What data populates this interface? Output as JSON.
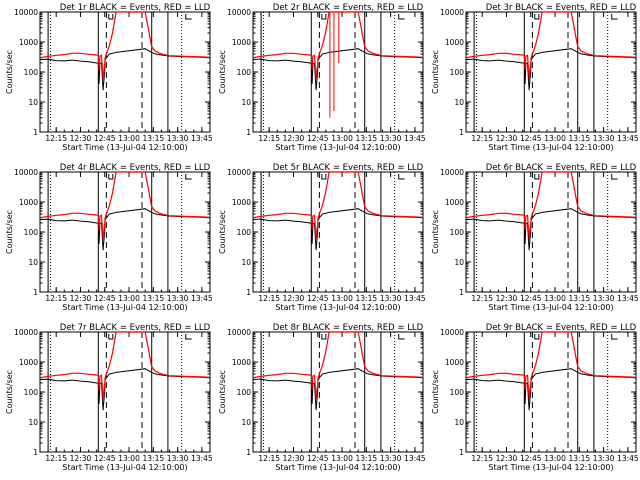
{
  "chart_data": {
    "type": "line",
    "layout": "3x3 grid",
    "shared": {
      "ylabel": "Counts/sec",
      "xlabel": "Start Time (13-Jul-04 12:10:00)",
      "yscale": "log",
      "ylim": [
        1,
        10000
      ],
      "yticks": [
        "1",
        "10",
        "100",
        "1000",
        "10000"
      ],
      "xlim_minutes": [
        -5,
        100
      ],
      "xticks": [
        {
          "t": 5,
          "label": "12:15"
        },
        {
          "t": 20,
          "label": "12:30"
        },
        {
          "t": 35,
          "label": "12:45"
        },
        {
          "t": 50,
          "label": "13:00"
        },
        {
          "t": 65,
          "label": "13:15"
        },
        {
          "t": 80,
          "label": "13:30"
        },
        {
          "t": 95,
          "label": "13:45"
        }
      ],
      "solid_lines_t": [
        0,
        31,
        64,
        74
      ],
      "dashed_lines_t": [
        36,
        58
      ],
      "dotted_lines_t": [
        1.5,
        82.5
      ],
      "series_colors": {
        "events": "#000000",
        "lld": "#ff0000"
      }
    },
    "panels": [
      {
        "title": "Det 1r BLACK = Events, RED = LLD"
      },
      {
        "title": "Det 2r BLACK = Events, RED = LLD",
        "spikes": true
      },
      {
        "title": "Det 3r BLACK = Events, RED = LLD"
      },
      {
        "title": "Det 4r BLACK = Events, RED = LLD"
      },
      {
        "title": "Det 5r BLACK = Events, RED = LLD"
      },
      {
        "title": "Det 6r BLACK = Events, RED = LLD"
      },
      {
        "title": "Det 7r BLACK = Events, RED = LLD"
      },
      {
        "title": "Det 8r BLACK = Events, RED = LLD"
      },
      {
        "title": "Det 9r BLACK = Events, RED = LLD"
      }
    ],
    "series": [
      {
        "values_t": [
          -5,
          0,
          5,
          10,
          15,
          20,
          25,
          30,
          31,
          31.5,
          32,
          33,
          34,
          35,
          35.2,
          36,
          38,
          39.8,
          42,
          60,
          64,
          66,
          70,
          75,
          85,
          95,
          100
        ],
        "values_events": [
          260,
          270,
          240,
          235,
          250,
          230,
          220,
          200,
          195,
          40,
          190,
          200,
          25,
          120,
          250,
          300,
          400,
          420,
          450,
          600,
          450,
          400,
          370,
          340,
          320,
          310,
          300
        ],
        "values_lld": [
          300,
          330,
          360,
          380,
          420,
          420,
          390,
          370,
          350,
          120,
          340,
          360,
          60,
          200,
          300,
          400,
          800,
          2000,
          10000,
          10000,
          700,
          500,
          400,
          350,
          330,
          320,
          310
        ]
      }
    ]
  }
}
